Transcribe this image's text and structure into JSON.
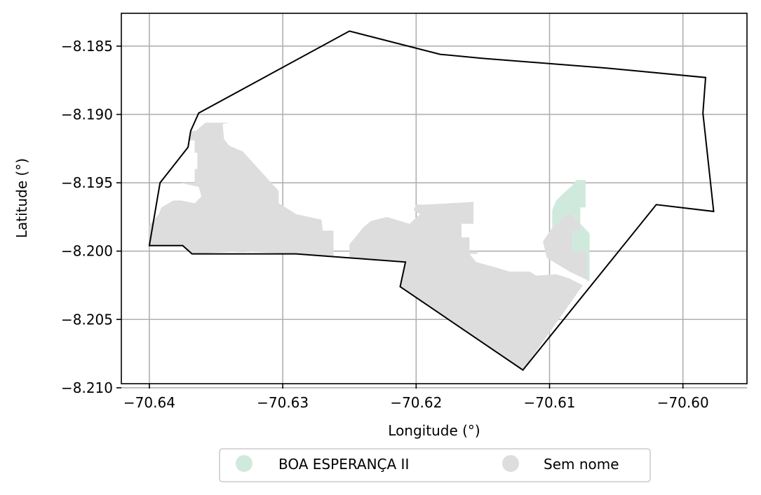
{
  "chart_data": {
    "type": "map",
    "xlabel": "Longitude (°)",
    "ylabel": "Latitude (°)",
    "xlim": [
      -70.6421,
      -70.5952
    ],
    "ylim": [
      -8.2097,
      -8.1826
    ],
    "x_ticks": [
      {
        "value": -70.64,
        "label": "−70.64"
      },
      {
        "value": -70.63,
        "label": "−70.63"
      },
      {
        "value": -70.62,
        "label": "−70.62"
      },
      {
        "value": -70.61,
        "label": "−70.61"
      },
      {
        "value": -70.6,
        "label": "−70.60"
      }
    ],
    "y_ticks": [
      {
        "value": -8.185,
        "label": "−8.185"
      },
      {
        "value": -8.19,
        "label": "−8.190"
      },
      {
        "value": -8.195,
        "label": "−8.195"
      },
      {
        "value": -8.2,
        "label": "−8.200"
      },
      {
        "value": -8.205,
        "label": "−8.205"
      },
      {
        "value": -8.21,
        "label": "−8.210"
      }
    ],
    "grid": true,
    "legend_position": "bottom-center",
    "legend": [
      {
        "label": "BOA ESPERANÇA II",
        "color": "#cfeadd"
      },
      {
        "label": "Sem nome",
        "color": "#dddddd"
      }
    ],
    "boundary": {
      "color": "#000000",
      "coords": [
        [
          -70.64,
          -8.1996
        ],
        [
          -70.6392,
          -8.195
        ],
        [
          -70.6371,
          -8.1924
        ],
        [
          -70.6369,
          -8.1912
        ],
        [
          -70.6363,
          -8.1899
        ],
        [
          -70.625,
          -8.1839
        ],
        [
          -70.6182,
          -8.1856
        ],
        [
          -70.615,
          -8.1859
        ],
        [
          -70.6058,
          -8.1866
        ],
        [
          -70.5983,
          -8.1873
        ],
        [
          -70.5985,
          -8.1899
        ],
        [
          -70.5977,
          -8.1971
        ],
        [
          -70.602,
          -8.1966
        ],
        [
          -70.612,
          -8.2087
        ],
        [
          -70.6212,
          -8.2026
        ],
        [
          -70.6208,
          -8.2008
        ],
        [
          -70.629,
          -8.2002
        ],
        [
          -70.6368,
          -8.2002
        ],
        [
          -70.6375,
          -8.1996
        ],
        [
          -70.64,
          -8.1996
        ]
      ]
    },
    "regions": [
      {
        "name": "Sem nome",
        "color": "#dddddd",
        "coords": [
          [
            -70.64,
            -8.1996
          ],
          [
            -70.6375,
            -8.1996
          ],
          [
            -70.6368,
            -8.2002
          ],
          [
            -70.633,
            -8.2
          ],
          [
            -70.6262,
            -8.2004
          ],
          [
            -70.6262,
            -8.1985
          ],
          [
            -70.627,
            -8.1985
          ],
          [
            -70.6271,
            -8.1977
          ],
          [
            -70.629,
            -8.1973
          ],
          [
            -70.6303,
            -8.1965
          ],
          [
            -70.6303,
            -8.1956
          ],
          [
            -70.633,
            -8.1927
          ],
          [
            -70.634,
            -8.1923
          ],
          [
            -70.6344,
            -8.1918
          ],
          [
            -70.6345,
            -8.1907
          ],
          [
            -70.634,
            -8.1906
          ],
          [
            -70.6358,
            -8.1906
          ],
          [
            -70.6365,
            -8.1912
          ],
          [
            -70.6369,
            -8.1912
          ],
          [
            -70.6371,
            -8.1919
          ],
          [
            -70.6366,
            -8.1919
          ],
          [
            -70.6366,
            -8.1928
          ],
          [
            -70.6364,
            -8.1928
          ],
          [
            -70.6364,
            -8.194
          ],
          [
            -70.6366,
            -8.194
          ],
          [
            -70.6366,
            -8.195
          ],
          [
            -70.6377,
            -8.195
          ],
          [
            -70.6363,
            -8.1953
          ],
          [
            -70.6361,
            -8.196
          ],
          [
            -70.6366,
            -8.1965
          ],
          [
            -70.6376,
            -8.1963
          ],
          [
            -70.6382,
            -8.1963
          ],
          [
            -70.6391,
            -8.1968
          ],
          [
            -70.6393,
            -8.1973
          ],
          [
            -70.64,
            -8.1981
          ]
        ]
      },
      {
        "name": "Sem nome",
        "color": "#dddddd",
        "coords": [
          [
            -70.625,
            -8.2005
          ],
          [
            -70.6208,
            -8.2008
          ],
          [
            -70.6212,
            -8.2026
          ],
          [
            -70.612,
            -8.2087
          ],
          [
            -70.6075,
            -8.2025
          ],
          [
            -70.6085,
            -8.202
          ],
          [
            -70.6095,
            -8.2017
          ],
          [
            -70.611,
            -8.2018
          ],
          [
            -70.6115,
            -8.2015
          ],
          [
            -70.613,
            -8.2015
          ],
          [
            -70.614,
            -8.2012
          ],
          [
            -70.6155,
            -8.2008
          ],
          [
            -70.616,
            -8.2002
          ],
          [
            -70.6154,
            -8.2002
          ],
          [
            -70.6154,
            -8.2
          ],
          [
            -70.616,
            -8.2
          ],
          [
            -70.616,
            -8.199
          ],
          [
            -70.6166,
            -8.199
          ],
          [
            -70.6166,
            -8.198
          ],
          [
            -70.6157,
            -8.198
          ],
          [
            -70.6157,
            -8.1964
          ],
          [
            -70.6194,
            -8.1966
          ],
          [
            -70.62,
            -8.1966
          ],
          [
            -70.6202,
            -8.197
          ],
          [
            -70.6197,
            -8.1973
          ],
          [
            -70.6205,
            -8.198
          ],
          [
            -70.6222,
            -8.1975
          ],
          [
            -70.6234,
            -8.1978
          ],
          [
            -70.624,
            -8.1983
          ],
          [
            -70.6244,
            -8.1988
          ],
          [
            -70.625,
            -8.1995
          ]
        ]
      },
      {
        "name": "Sem nome",
        "color": "#dddddd",
        "coords": [
          [
            -70.6085,
            -8.1972
          ],
          [
            -70.607,
            -8.1987
          ],
          [
            -70.607,
            -8.2022
          ],
          [
            -70.6085,
            -8.2015
          ],
          [
            -70.6102,
            -8.2005
          ],
          [
            -70.6105,
            -8.1993
          ],
          [
            -70.6098,
            -8.1983
          ]
        ]
      },
      {
        "name": "BOA ESPERANÇA II",
        "color": "#cfeadd",
        "coords": [
          [
            -70.6085,
            -8.1972
          ],
          [
            -70.607,
            -8.1987
          ],
          [
            -70.607,
            -8.2022
          ],
          [
            -70.6072,
            -8.2022
          ],
          [
            -70.6072,
            -8.2
          ],
          [
            -70.6083,
            -8.2
          ],
          [
            -70.6083,
            -8.1985
          ],
          [
            -70.6077,
            -8.1985
          ],
          [
            -70.6077,
            -8.1968
          ],
          [
            -70.6073,
            -8.1968
          ],
          [
            -70.6073,
            -8.1948
          ],
          [
            -70.608,
            -8.1948
          ],
          [
            -70.6083,
            -8.1952
          ],
          [
            -70.609,
            -8.1958
          ],
          [
            -70.6095,
            -8.1963
          ],
          [
            -70.6098,
            -8.197
          ],
          [
            -70.6098,
            -8.1983
          ]
        ]
      }
    ]
  }
}
